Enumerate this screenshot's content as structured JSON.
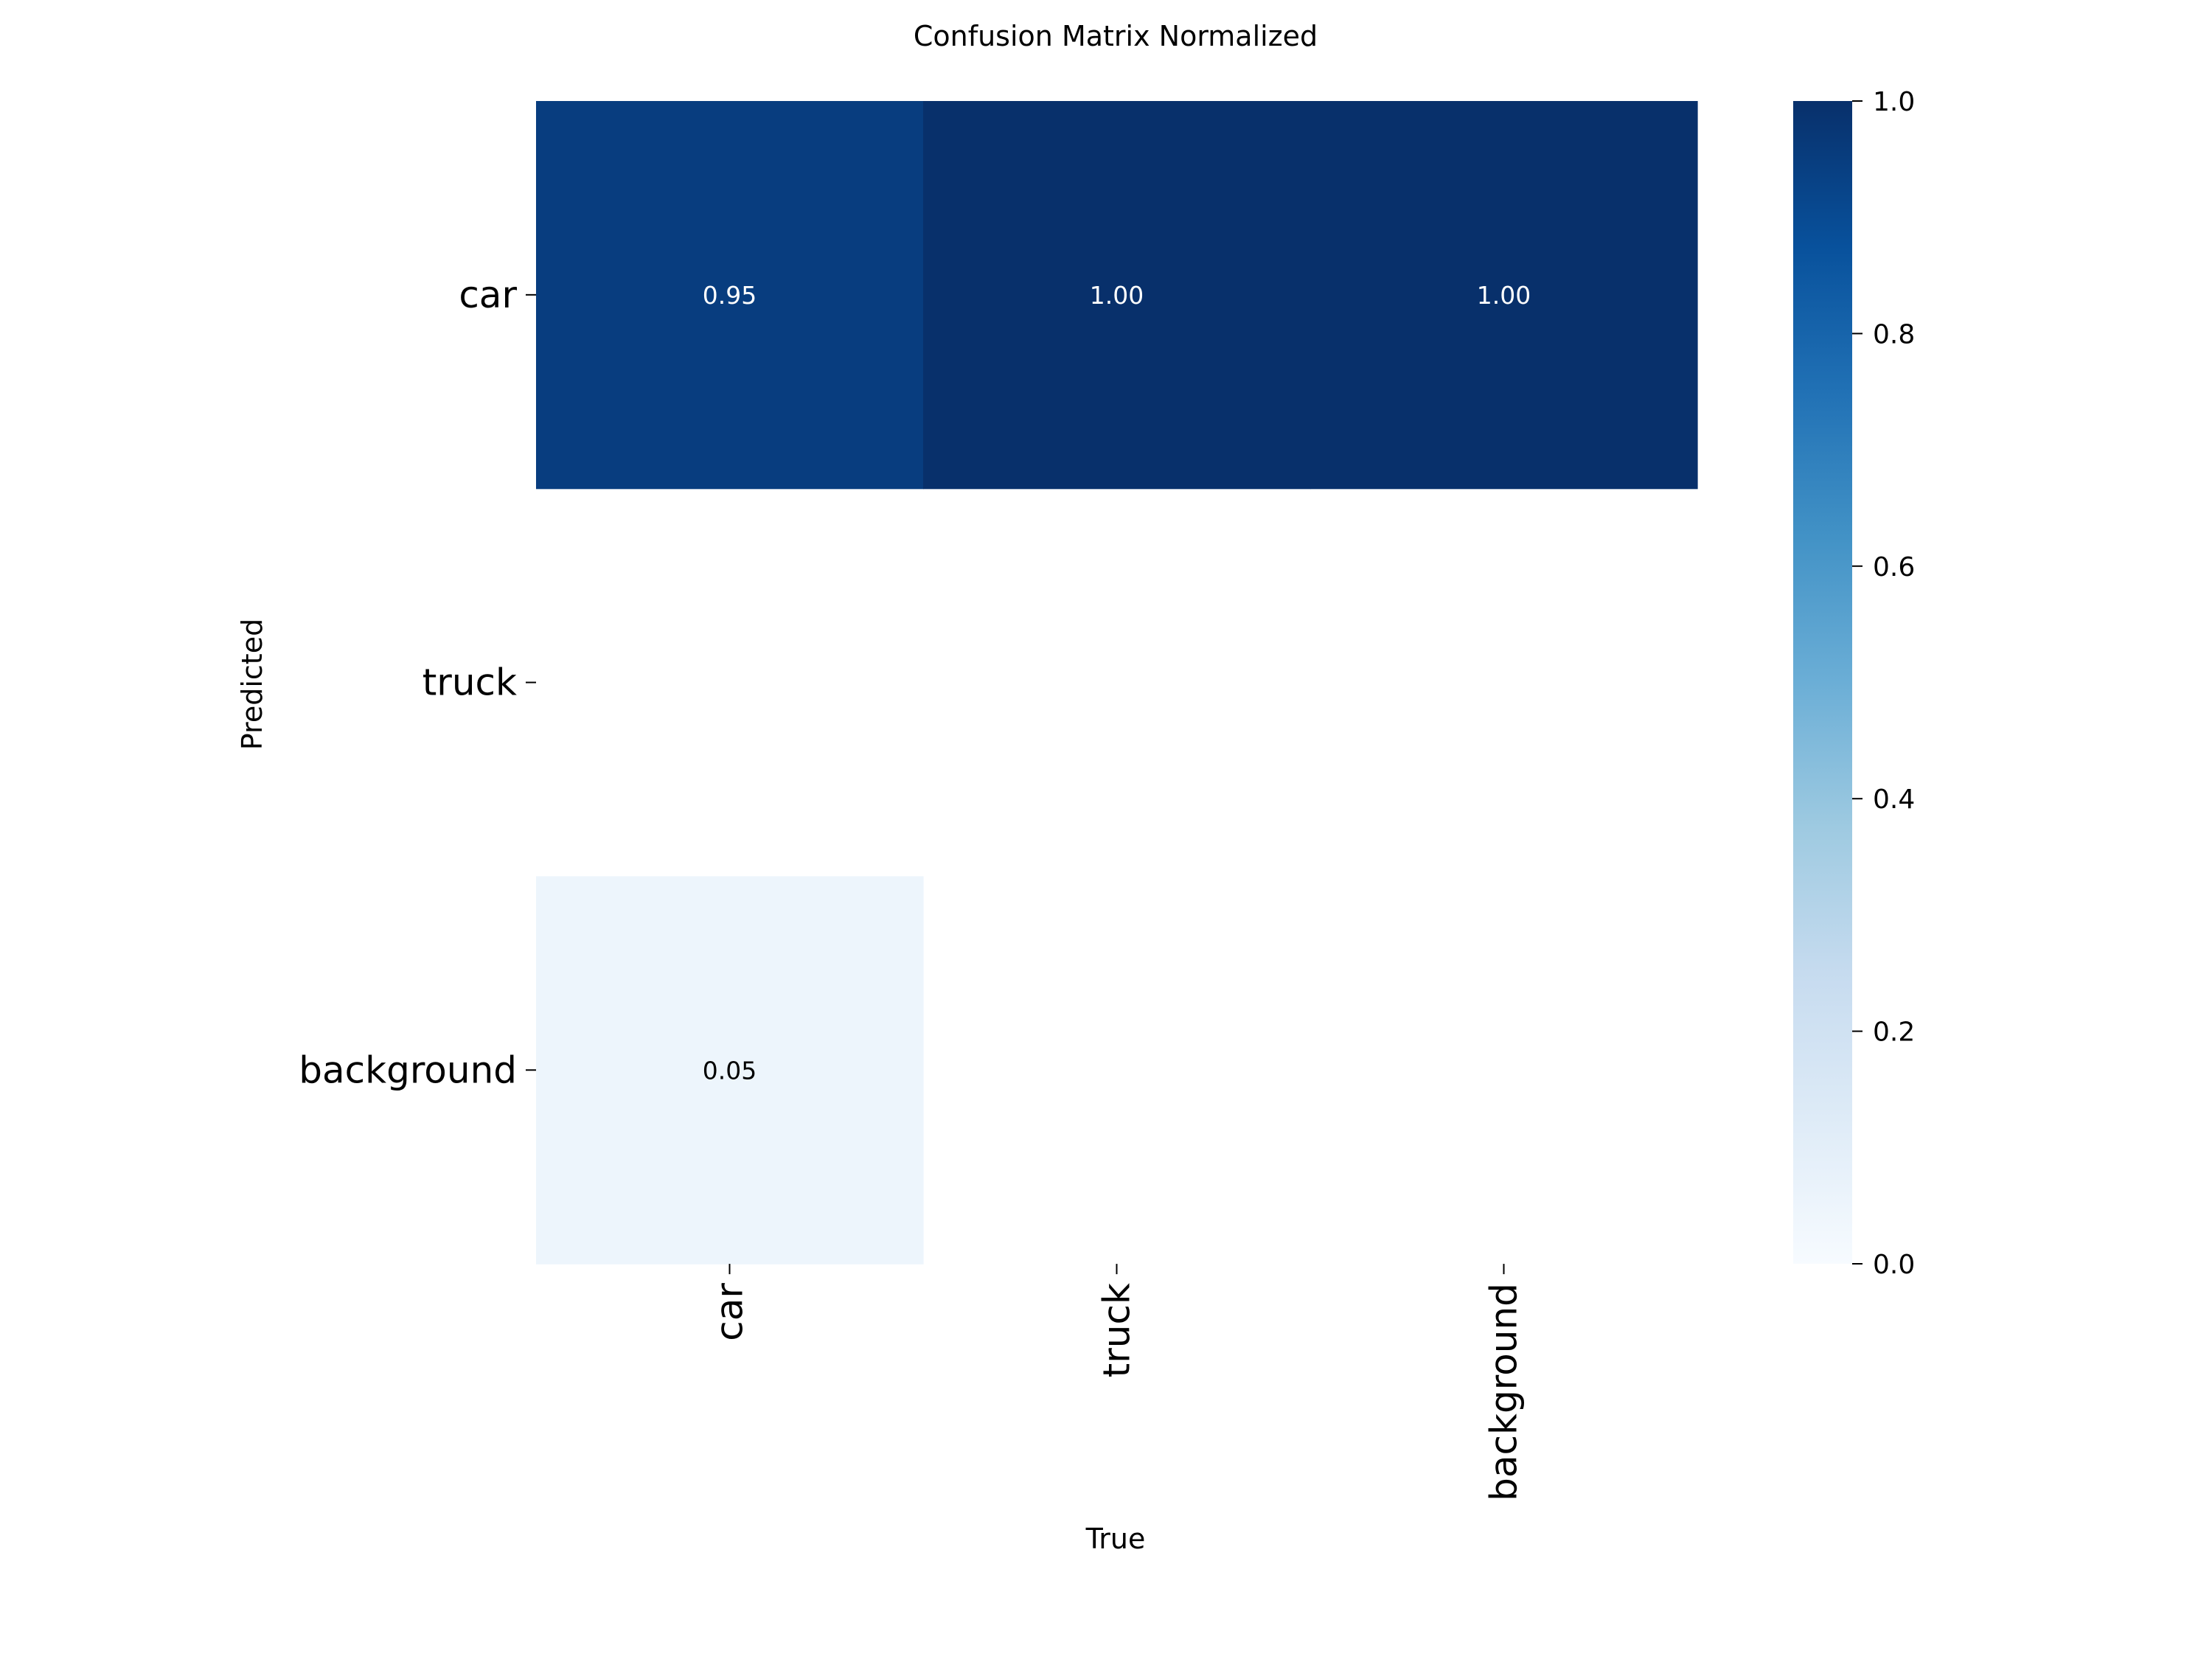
{
  "chart_data": {
    "type": "heatmap",
    "title": "Confusion Matrix Normalized",
    "xlabel": "True",
    "ylabel": "Predicted",
    "x_categories": [
      "car",
      "truck",
      "background"
    ],
    "y_categories": [
      "car",
      "truck",
      "background"
    ],
    "values": [
      [
        0.95,
        1.0,
        1.0
      ],
      [
        null,
        null,
        null
      ],
      [
        0.05,
        null,
        null
      ]
    ],
    "annotations": [
      [
        "0.95",
        "1.00",
        "1.00"
      ],
      [
        "",
        "",
        ""
      ],
      [
        "0.05",
        "",
        ""
      ]
    ],
    "colorbar": {
      "range": [
        0.0,
        1.0
      ],
      "ticks": [
        "0.0",
        "0.2",
        "0.4",
        "0.6",
        "0.8",
        "1.0"
      ],
      "colormap": "Blues"
    },
    "colors": {
      "low": "#f7fbff",
      "high": "#08306b",
      "annotation_light": "#ffffff",
      "annotation_dark": "#000000"
    }
  }
}
